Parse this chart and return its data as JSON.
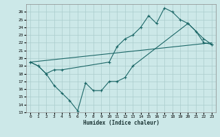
{
  "xlabel": "Humidex (Indice chaleur)",
  "xlim": [
    -0.5,
    23.5
  ],
  "ylim": [
    13,
    27
  ],
  "yticks": [
    13,
    14,
    15,
    16,
    17,
    18,
    19,
    20,
    21,
    22,
    23,
    24,
    25,
    26
  ],
  "xticks": [
    0,
    1,
    2,
    3,
    4,
    5,
    6,
    7,
    8,
    9,
    10,
    11,
    12,
    13,
    14,
    15,
    16,
    17,
    18,
    19,
    20,
    21,
    22,
    23
  ],
  "bg_color": "#cce8e8",
  "line_color": "#1a6666",
  "grid_color": "#aacccc",
  "line1_x": [
    0,
    1,
    2,
    3,
    4,
    10,
    11,
    12,
    13,
    14,
    15,
    16,
    17,
    18,
    19,
    20,
    21,
    22,
    23
  ],
  "line1_y": [
    19.5,
    19.0,
    18.0,
    18.5,
    18.5,
    19.5,
    21.5,
    22.5,
    23.0,
    24.0,
    25.5,
    24.5,
    26.5,
    26.0,
    25.0,
    24.5,
    23.5,
    22.0,
    21.8
  ],
  "line2_x": [
    0,
    1,
    2,
    3,
    4,
    5,
    6,
    7,
    8,
    9,
    10,
    11,
    12,
    13,
    20,
    22,
    23
  ],
  "line2_y": [
    19.5,
    19.0,
    18.0,
    16.5,
    15.5,
    14.5,
    13.2,
    16.8,
    15.8,
    15.8,
    17.0,
    17.0,
    17.5,
    19.0,
    24.5,
    22.5,
    21.8
  ],
  "line3_x": [
    0,
    23
  ],
  "line3_y": [
    19.5,
    22.0
  ]
}
